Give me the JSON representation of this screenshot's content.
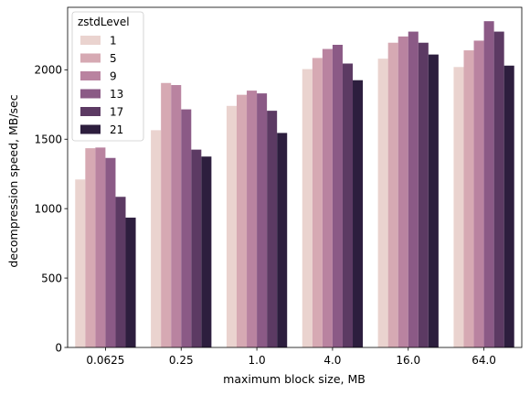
{
  "chart_data": {
    "type": "bar",
    "title": "",
    "xlabel": "maximum block size, MB",
    "ylabel": "decompression speed, MB/sec",
    "categories": [
      "0.0625",
      "0.25",
      "1.0",
      "4.0",
      "16.0",
      "64.0"
    ],
    "ylim": [
      0,
      2450
    ],
    "yticks": [
      0,
      500,
      1000,
      1500,
      2000
    ],
    "grid": false,
    "legend": {
      "title": "zstdLevel",
      "position": "top-left"
    },
    "series": [
      {
        "name": "1",
        "color": "#ead3cf",
        "values": [
          1210,
          1565,
          1740,
          2005,
          2080,
          2020
        ]
      },
      {
        "name": "5",
        "color": "#d6a9b3",
        "values": [
          1435,
          1905,
          1820,
          2085,
          2195,
          2140
        ]
      },
      {
        "name": "9",
        "color": "#b983a0",
        "values": [
          1440,
          1890,
          1850,
          2150,
          2240,
          2210
        ]
      },
      {
        "name": "13",
        "color": "#8b5a86",
        "values": [
          1365,
          1715,
          1830,
          2180,
          2275,
          2350
        ]
      },
      {
        "name": "17",
        "color": "#5c3a63",
        "values": [
          1085,
          1425,
          1705,
          2045,
          2195,
          2275
        ]
      },
      {
        "name": "21",
        "color": "#2d1e3e",
        "values": [
          935,
          1375,
          1545,
          1925,
          2110,
          2030
        ]
      }
    ]
  }
}
